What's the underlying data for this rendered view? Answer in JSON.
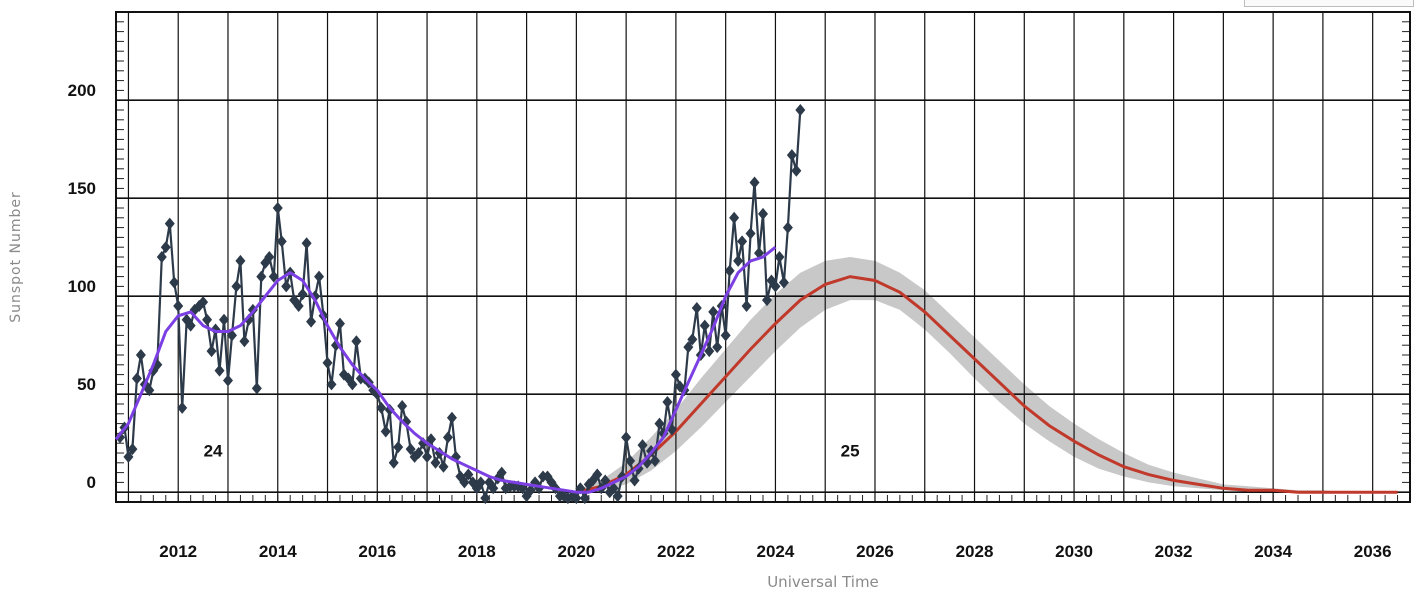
{
  "chart_data": {
    "type": "line",
    "title": "",
    "xlabel": "Universal Time",
    "ylabel": "Sunspot Number",
    "xlim": [
      2010.75,
      2036.75
    ],
    "ylim": [
      -5,
      245
    ],
    "x_ticks": [
      "2012",
      "2014",
      "2016",
      "2018",
      "2020",
      "2022",
      "2024",
      "2026",
      "2028",
      "2030",
      "2032",
      "2034",
      "2036"
    ],
    "y_ticks": [
      "0",
      "50",
      "100",
      "150",
      "200"
    ],
    "grid": true,
    "legend": "none",
    "annotations": [
      {
        "text": "24",
        "x": 2012.7,
        "y": 8
      },
      {
        "text": "25",
        "x": 2025.5,
        "y": 8
      }
    ],
    "series": [
      {
        "kind": "monthly-observed",
        "color": "#2d3a4a",
        "x": [
          2010.83,
          2010.92,
          2011.0,
          2011.08,
          2011.17,
          2011.25,
          2011.33,
          2011.42,
          2011.5,
          2011.58,
          2011.67,
          2011.75,
          2011.83,
          2011.92,
          2012.0,
          2012.08,
          2012.17,
          2012.25,
          2012.33,
          2012.42,
          2012.5,
          2012.58,
          2012.67,
          2012.75,
          2012.83,
          2012.92,
          2013.0,
          2013.08,
          2013.17,
          2013.25,
          2013.33,
          2013.42,
          2013.5,
          2013.58,
          2013.67,
          2013.75,
          2013.83,
          2013.92,
          2014.0,
          2014.08,
          2014.17,
          2014.25,
          2014.33,
          2014.42,
          2014.5,
          2014.58,
          2014.67,
          2014.75,
          2014.83,
          2014.92,
          2015.0,
          2015.08,
          2015.17,
          2015.25,
          2015.33,
          2015.42,
          2015.5,
          2015.58,
          2015.67,
          2015.75,
          2015.83,
          2015.92,
          2016.0,
          2016.08,
          2016.17,
          2016.25,
          2016.33,
          2016.42,
          2016.5,
          2016.58,
          2016.67,
          2016.75,
          2016.83,
          2016.92,
          2017.0,
          2017.08,
          2017.17,
          2017.25,
          2017.33,
          2017.42,
          2017.5,
          2017.58,
          2017.67,
          2017.75,
          2017.83,
          2017.92,
          2018.0,
          2018.08,
          2018.17,
          2018.25,
          2018.33,
          2018.42,
          2018.5,
          2018.58,
          2018.67,
          2018.75,
          2018.83,
          2018.92,
          2019.0,
          2019.08,
          2019.17,
          2019.25,
          2019.33,
          2019.42,
          2019.5,
          2019.58,
          2019.67,
          2019.75,
          2019.83,
          2019.92,
          2020.0,
          2020.08,
          2020.17,
          2020.25,
          2020.33,
          2020.42,
          2020.5,
          2020.58,
          2020.67,
          2020.75,
          2020.83,
          2020.92,
          2021.0,
          2021.08,
          2021.17,
          2021.25,
          2021.33,
          2021.42,
          2021.5,
          2021.58,
          2021.67,
          2021.75,
          2021.83,
          2021.92,
          2022.0,
          2022.08,
          2022.17,
          2022.25,
          2022.33,
          2022.42,
          2022.5,
          2022.58,
          2022.67,
          2022.75,
          2022.83,
          2022.92,
          2023.0,
          2023.08,
          2023.17,
          2023.25,
          2023.33,
          2023.42,
          2023.5,
          2023.58,
          2023.67,
          2023.75,
          2023.83,
          2023.92,
          2024.0,
          2024.08,
          2024.17,
          2024.25,
          2024.33,
          2024.42,
          2024.5
        ],
        "y": [
          28,
          33,
          18,
          22,
          58,
          70,
          55,
          52,
          62,
          65,
          120,
          125,
          137,
          107,
          95,
          43,
          88,
          85,
          93,
          95,
          97,
          88,
          72,
          83,
          62,
          88,
          57,
          80,
          105,
          118,
          77,
          88,
          93,
          53,
          110,
          117,
          120,
          110,
          145,
          128,
          105,
          112,
          98,
          95,
          101,
          127,
          87,
          100,
          110,
          90,
          66,
          55,
          75,
          86,
          60,
          58,
          55,
          77,
          58,
          58,
          56,
          52,
          50,
          43,
          31,
          42,
          15,
          23,
          44,
          36,
          22,
          18,
          20,
          25,
          18,
          27,
          15,
          20,
          13,
          28,
          38,
          18,
          8,
          5,
          9,
          5,
          2,
          5,
          -3,
          5,
          2,
          7,
          10,
          2,
          3,
          3,
          3,
          2,
          -2,
          1,
          5,
          2,
          8,
          8,
          5,
          2,
          -2,
          -2,
          -3,
          -2,
          -3,
          2,
          -3,
          4,
          6,
          9,
          2,
          6,
          0,
          2,
          -2,
          8,
          28,
          16,
          6,
          12,
          24,
          15,
          21,
          16,
          35,
          30,
          46,
          32,
          60,
          54,
          52,
          74,
          78,
          94,
          70,
          85,
          72,
          92,
          74,
          95,
          80,
          113,
          140,
          118,
          128,
          95,
          132,
          158,
          122,
          142,
          98,
          108,
          105,
          120,
          107,
          135,
          172,
          164,
          195
        ]
      },
      {
        "kind": "smoothed-observed",
        "color": "#7b3fe4",
        "x": [
          2010.75,
          2011.0,
          2011.25,
          2011.5,
          2011.75,
          2012.0,
          2012.25,
          2012.5,
          2012.75,
          2013.0,
          2013.25,
          2013.5,
          2013.75,
          2014.0,
          2014.25,
          2014.5,
          2014.75,
          2015.0,
          2015.25,
          2015.5,
          2015.75,
          2016.0,
          2016.25,
          2016.5,
          2016.75,
          2017.0,
          2017.25,
          2017.5,
          2017.75,
          2018.0,
          2018.25,
          2018.5,
          2018.75,
          2019.0,
          2019.25,
          2019.5,
          2019.75,
          2020.0,
          2020.25,
          2020.5,
          2020.75,
          2021.0,
          2021.25,
          2021.5,
          2021.75,
          2022.0,
          2022.25,
          2022.5,
          2022.75,
          2023.0,
          2023.25,
          2023.5,
          2023.75,
          2024.0
        ],
        "y": [
          27,
          35,
          50,
          65,
          82,
          90,
          92,
          85,
          82,
          82,
          85,
          92,
          100,
          108,
          112,
          108,
          98,
          85,
          74,
          65,
          58,
          52,
          43,
          36,
          30,
          25,
          21,
          17,
          14,
          11,
          8,
          6,
          5,
          4,
          3,
          2,
          1,
          0,
          0,
          2,
          5,
          8,
          13,
          20,
          28,
          42,
          56,
          70,
          84,
          100,
          112,
          118,
          120,
          125
        ]
      },
      {
        "kind": "predicted",
        "color": "#c0392b",
        "x": [
          2020.0,
          2020.5,
          2021.0,
          2021.5,
          2022.0,
          2022.5,
          2023.0,
          2023.5,
          2024.0,
          2024.5,
          2025.0,
          2025.5,
          2026.0,
          2026.5,
          2027.0,
          2027.5,
          2028.0,
          2028.5,
          2029.0,
          2029.5,
          2030.0,
          2030.5,
          2031.0,
          2031.5,
          2032.0,
          2032.5,
          2033.0,
          2033.5,
          2034.0,
          2034.5,
          2035.0,
          2035.5,
          2036.0,
          2036.5
        ],
        "y": [
          0,
          3,
          9,
          19,
          31,
          45,
          59,
          73,
          86,
          98,
          106,
          110,
          108,
          102,
          92,
          80,
          68,
          56,
          44,
          34,
          26,
          19,
          13,
          9,
          6,
          4,
          2,
          1,
          1,
          0,
          0,
          0,
          0,
          0
        ]
      },
      {
        "kind": "predicted-range",
        "color": "#c8c8c8",
        "x": [
          2020.0,
          2020.5,
          2021.0,
          2021.5,
          2022.0,
          2022.5,
          2023.0,
          2023.5,
          2024.0,
          2024.5,
          2025.0,
          2025.5,
          2026.0,
          2026.5,
          2027.0,
          2027.5,
          2028.0,
          2028.5,
          2029.0,
          2029.5,
          2030.0,
          2030.5,
          2031.0,
          2031.5,
          2032.0,
          2032.5,
          2033.0,
          2033.5,
          2034.0,
          2034.5,
          2035.0,
          2035.5,
          2036.0,
          2036.5
        ],
        "upper": [
          1,
          6,
          15,
          28,
          42,
          58,
          73,
          88,
          101,
          112,
          118,
          120,
          118,
          112,
          103,
          91,
          79,
          67,
          55,
          44,
          35,
          27,
          20,
          14,
          10,
          7,
          4,
          3,
          2,
          1,
          1,
          0,
          0,
          0
        ],
        "lower": [
          0,
          1,
          4,
          11,
          21,
          33,
          46,
          59,
          72,
          84,
          93,
          98,
          98,
          93,
          83,
          71,
          58,
          46,
          35,
          26,
          18,
          12,
          8,
          5,
          3,
          2,
          1,
          0,
          0,
          0,
          0,
          0,
          0,
          0
        ]
      }
    ]
  }
}
